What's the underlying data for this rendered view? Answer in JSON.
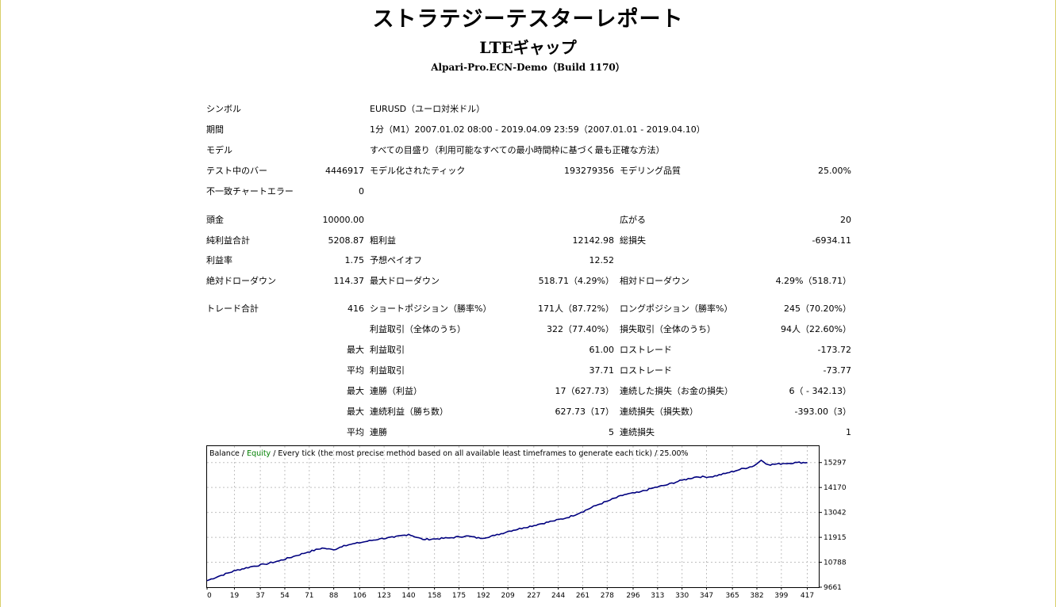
{
  "report": {
    "title": "ストラテジーテスターレポート",
    "subtitle": "LTEギャップ",
    "server": "Alpari-Pro.ECN-Demo（Build 1170）"
  },
  "info": {
    "symbol_label": "シンボル",
    "symbol_value": "EURUSD（ユーロ対米ドル）",
    "period_label": "期間",
    "period_value": "1分（M1）2007.01.02 08:00 - 2019.04.09 23:59（2007.01.01 - 2019.04.10）",
    "model_label": "モデル",
    "model_value": "すべての目盛り（利用可能なすべての最小時間枠に基づく最も正確な方法）",
    "bars_label": "テスト中のバー",
    "bars_value": "4446917",
    "ticks_label": "モデル化されたティック",
    "ticks_value": "193279356",
    "quality_label": "モデリング品質",
    "quality_value": "25.00%",
    "errors_label": "不一致チャートエラー",
    "errors_value": "0"
  },
  "results": {
    "deposit_label": "頭金",
    "deposit_value": "10000.00",
    "spread_label": "広がる",
    "spread_value": "20",
    "net_label": "純利益合計",
    "net_value": "5208.87",
    "gross_profit_label": "粗利益",
    "gross_profit_value": "12142.98",
    "gross_loss_label": "総損失",
    "gross_loss_value": "-6934.11",
    "pf_label": "利益率",
    "pf_value": "1.75",
    "payoff_label": "予想ペイオフ",
    "payoff_value": "12.52",
    "abs_dd_label": "絶対ドローダウン",
    "abs_dd_value": "114.37",
    "max_dd_label": "最大ドローダウン",
    "max_dd_value": "518.71（4.29%）",
    "rel_dd_label": "相対ドローダウン",
    "rel_dd_value": "4.29%（518.71）"
  },
  "trades": {
    "total_label": "トレード合計",
    "total_value": "416",
    "short_label": "ショートポジション（勝率%）",
    "short_value": "171人（87.72%）",
    "long_label": "ロングポジション（勝率%）",
    "long_value": "245（70.20%）",
    "profit_trades_label": "利益取引（全体のうち）",
    "profit_trades_value": "322（77.40%）",
    "loss_trades_label": "損失取引（全体のうち）",
    "loss_trades_value": "94人（22.60%）",
    "rows": [
      {
        "prefix": "最大",
        "a_label": "利益取引",
        "a_value": "61.00",
        "b_label": "ロストレード",
        "b_value": "-173.72"
      },
      {
        "prefix": "平均",
        "a_label": "利益取引",
        "a_value": "37.71",
        "b_label": "ロストレード",
        "b_value": "-73.77"
      },
      {
        "prefix": "最大",
        "a_label": "連勝（利益）",
        "a_value": "17（627.73）",
        "b_label": "連続した損失（お金の損失）",
        "b_value": "6（ - 342.13）"
      },
      {
        "prefix": "最大",
        "a_label": "連続利益（勝ち数）",
        "a_value": "627.73（17）",
        "b_label": "連続損失（損失数）",
        "b_value": "-393.00（3）"
      },
      {
        "prefix": "平均",
        "a_label": "連勝",
        "a_value": "5",
        "b_label": "連続損失",
        "b_value": "1"
      }
    ]
  },
  "chart_data": {
    "type": "line",
    "legend": {
      "balance": "Balance",
      "sep1": " / ",
      "equity": "Equity",
      "rest": " / Every tick (the most precise method based on all available least timeframes to generate each tick) / 25.00%"
    },
    "colors": {
      "balance": "#00007f",
      "equity": "#008000",
      "grid": "#c0c0c0"
    },
    "x_ticks": [
      0,
      19,
      37,
      54,
      71,
      88,
      106,
      123,
      140,
      158,
      175,
      192,
      209,
      227,
      244,
      261,
      278,
      296,
      313,
      330,
      347,
      365,
      382,
      399,
      417
    ],
    "y_ticks": [
      9661,
      10788,
      11915,
      13042,
      14170,
      15297
    ],
    "xlim": [
      0,
      425
    ],
    "ylim": [
      9661,
      16040
    ],
    "series": [
      {
        "name": "Balance",
        "x": [
          0,
          10,
          20,
          30,
          40,
          50,
          60,
          70,
          80,
          88,
          95,
          100,
          110,
          120,
          130,
          140,
          150,
          160,
          170,
          180,
          190,
          200,
          210,
          220,
          230,
          240,
          250,
          260,
          270,
          280,
          290,
          300,
          310,
          320,
          330,
          340,
          350,
          360,
          370,
          380,
          385,
          390,
          400,
          410,
          417
        ],
        "y": [
          9960,
          10200,
          10420,
          10580,
          10700,
          10850,
          11050,
          11250,
          11430,
          11350,
          11550,
          11600,
          11720,
          11850,
          11920,
          12050,
          11820,
          11850,
          11900,
          11980,
          11870,
          12000,
          12200,
          12350,
          12500,
          12650,
          12800,
          13050,
          13350,
          13600,
          13850,
          13950,
          14150,
          14300,
          14500,
          14650,
          14650,
          14800,
          14980,
          15150,
          15400,
          15200,
          15250,
          15300,
          15297
        ]
      }
    ]
  }
}
